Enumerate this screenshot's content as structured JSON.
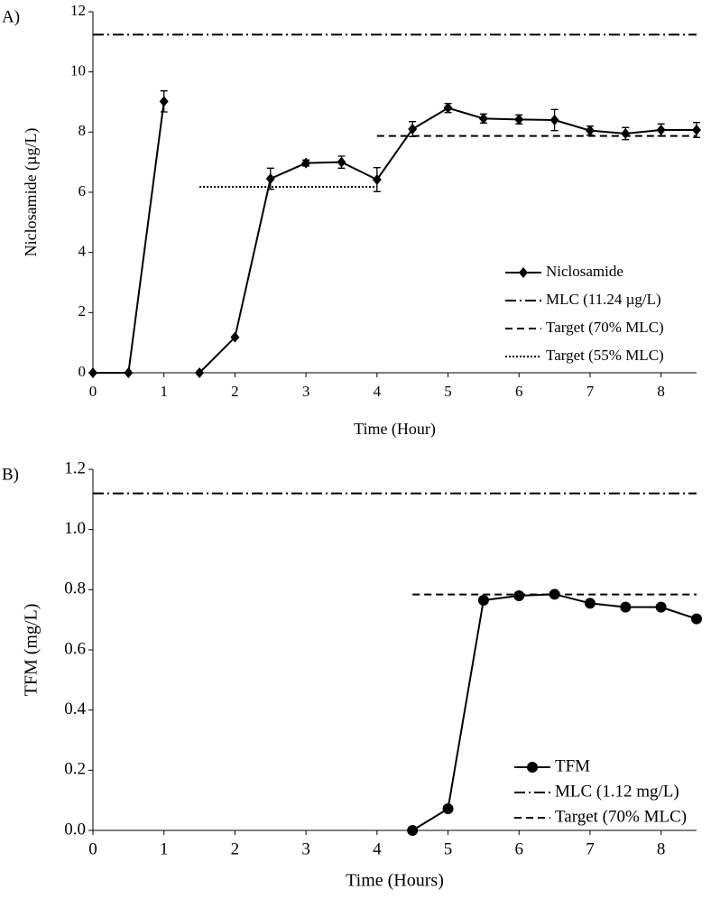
{
  "chart_data": [
    {
      "type": "line",
      "label": "A)",
      "x_label": "Time (Hour)",
      "y_label": "Niclosamide (µg/L)",
      "xlim": [
        0,
        8.5
      ],
      "xticks": [
        0,
        1,
        2,
        3,
        4,
        5,
        6,
        7,
        8
      ],
      "ylim": [
        0,
        12
      ],
      "yticks": [
        0,
        2,
        4,
        6,
        8,
        10,
        12
      ],
      "legend": "lower right",
      "series": [
        {
          "name": "Niclosamide",
          "color": "#000000",
          "style": "solid",
          "marker": "diamond",
          "x": [
            0,
            0.5,
            1,
            null,
            1.5,
            2,
            2.5,
            3,
            3.5,
            4,
            4.5,
            5,
            5.5,
            6,
            6.5,
            7,
            7.5,
            8,
            8.5
          ],
          "values": [
            0,
            0,
            9.02,
            null,
            0,
            1.18,
            6.45,
            6.97,
            7.0,
            6.42,
            8.1,
            8.8,
            8.45,
            8.42,
            8.4,
            8.05,
            7.95,
            8.07,
            8.07
          ],
          "errors": [
            0,
            0,
            0.35,
            null,
            0,
            0,
            0.35,
            0.1,
            0.2,
            0.4,
            0.25,
            0.15,
            0.15,
            0.15,
            0.35,
            0.15,
            0.2,
            0.2,
            0.25
          ]
        },
        {
          "name": "MLC (11.24 µg/L)",
          "color": "#000000",
          "style": "dashdot",
          "x": [
            0,
            8.5
          ],
          "values": [
            11.24,
            11.24
          ]
        },
        {
          "name": "Target (70% MLC)",
          "color": "#000000",
          "style": "dashed",
          "x": [
            4,
            8.5
          ],
          "values": [
            7.87,
            7.87
          ]
        },
        {
          "name": "Target (55% MLC)",
          "color": "#000000",
          "style": "dotted",
          "x": [
            1.5,
            4
          ],
          "values": [
            6.18,
            6.18
          ]
        }
      ]
    },
    {
      "type": "line",
      "label": "B)",
      "x_label": "Time (Hours)",
      "y_label": "TFM (mg/L)",
      "xlim": [
        0,
        8.5
      ],
      "xticks": [
        0,
        1,
        2,
        3,
        4,
        5,
        6,
        7,
        8
      ],
      "ylim": [
        0,
        1.2
      ],
      "yticks": [
        {
          "value": 0,
          "label": "0.0"
        },
        0.2,
        0.4,
        0.6,
        0.8,
        {
          "value": 1,
          "label": "1.0"
        },
        1.2
      ],
      "legend": "lower right",
      "series": [
        {
          "name": "TFM",
          "color": "#000000",
          "style": "solid",
          "marker": "circle",
          "x": [
            4.5,
            5,
            5.5,
            6,
            6.5,
            7,
            7.5,
            8,
            8.5
          ],
          "values": [
            0.0,
            0.072,
            0.765,
            0.78,
            0.785,
            0.755,
            0.742,
            0.742,
            0.703
          ]
        },
        {
          "name": "MLC (1.12 mg/L)",
          "color": "#000000",
          "style": "dashdot",
          "x": [
            0,
            8.5
          ],
          "values": [
            1.12,
            1.12
          ]
        },
        {
          "name": "Target (70% MLC)",
          "color": "#000000",
          "style": "dashed",
          "x": [
            4.5,
            8.5
          ],
          "values": [
            0.784,
            0.784
          ]
        }
      ]
    }
  ]
}
